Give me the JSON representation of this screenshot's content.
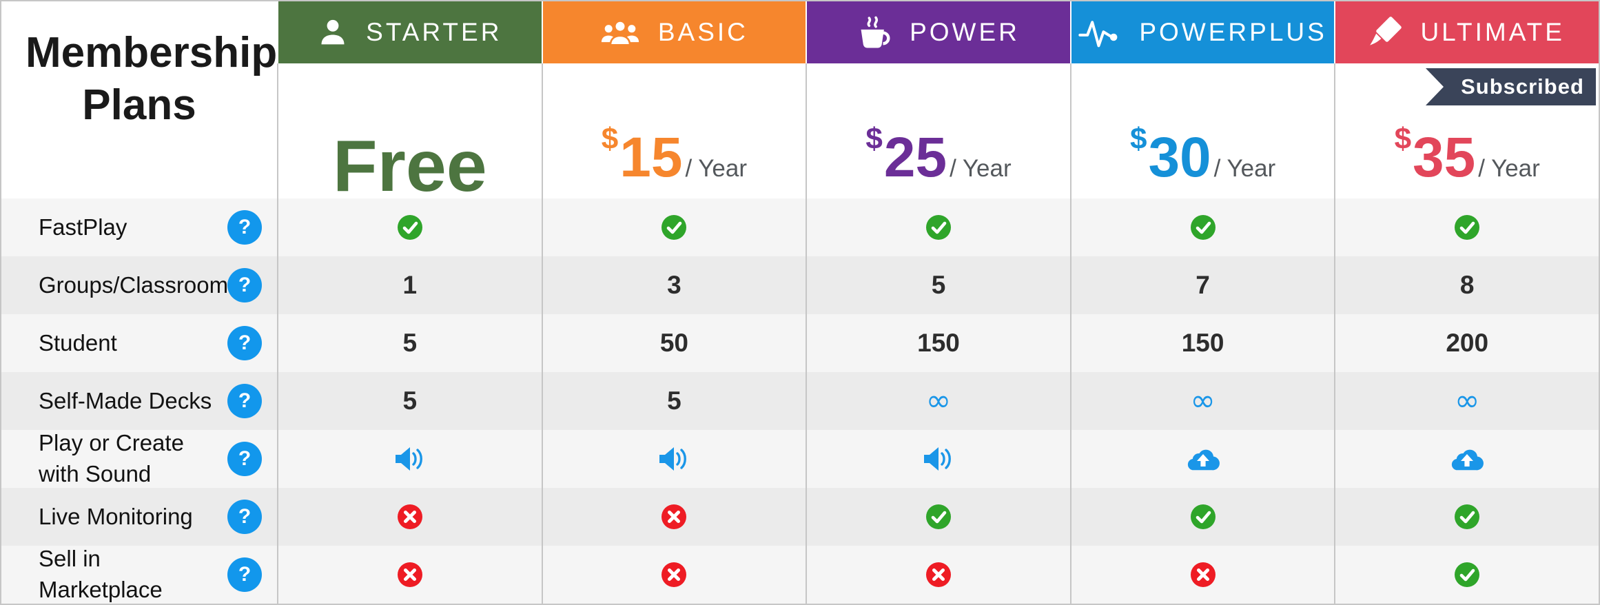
{
  "table": {
    "title": "Membership Plans",
    "help_symbol": "?",
    "symbols": {
      "infinity": "∞"
    },
    "plans": [
      {
        "name": "STARTER",
        "icon": "user",
        "color": "#4d7540",
        "price": "Free"
      },
      {
        "name": "BASIC",
        "icon": "users",
        "color": "#f6862d",
        "currency": "$",
        "amount": "15",
        "period": "/ Year"
      },
      {
        "name": "POWER",
        "icon": "coffee",
        "color": "#6b2e97",
        "currency": "$",
        "amount": "25",
        "period": "/ Year"
      },
      {
        "name": "POWERPLUS",
        "icon": "pulse",
        "color": "#1590d8",
        "currency": "$",
        "amount": "30",
        "period": "/ Year"
      },
      {
        "name": "ULTIMATE",
        "icon": "brush",
        "color": "#e2465a",
        "currency": "$",
        "amount": "35",
        "period": "/ Year",
        "badge": "Subscribed"
      }
    ],
    "features": [
      {
        "label": "FastPlay",
        "values": [
          "check",
          "check",
          "check",
          "check",
          "check"
        ]
      },
      {
        "label": "Groups/Classrooms",
        "values": [
          "1",
          "3",
          "5",
          "7",
          "8"
        ]
      },
      {
        "label": "Student",
        "values": [
          "5",
          "50",
          "150",
          "150",
          "200"
        ]
      },
      {
        "label": "Self-Made Decks",
        "values": [
          "5",
          "5",
          "infinity",
          "infinity",
          "infinity"
        ]
      },
      {
        "label": "Play or Create with Sound",
        "values": [
          "sound",
          "sound",
          "sound",
          "cloud-upload",
          "cloud-upload"
        ]
      },
      {
        "label": "Live Monitoring",
        "values": [
          "cross",
          "cross",
          "check",
          "check",
          "check"
        ]
      },
      {
        "label": "Sell in Marketplace",
        "values": [
          "cross",
          "cross",
          "cross",
          "cross",
          "check"
        ]
      }
    ],
    "colors": {
      "check_green": "#2fa52a",
      "cross_red": "#ee1c24",
      "icon_blue": "#1a96e8",
      "help_blue": "#1297ec",
      "badge_bg": "#3a4459",
      "row_light": "#f5f5f5",
      "row_dark": "#ebebeb",
      "border": "#c6c6c6",
      "period_gray": "#54585c",
      "title_text": "#1a1a1a"
    }
  }
}
